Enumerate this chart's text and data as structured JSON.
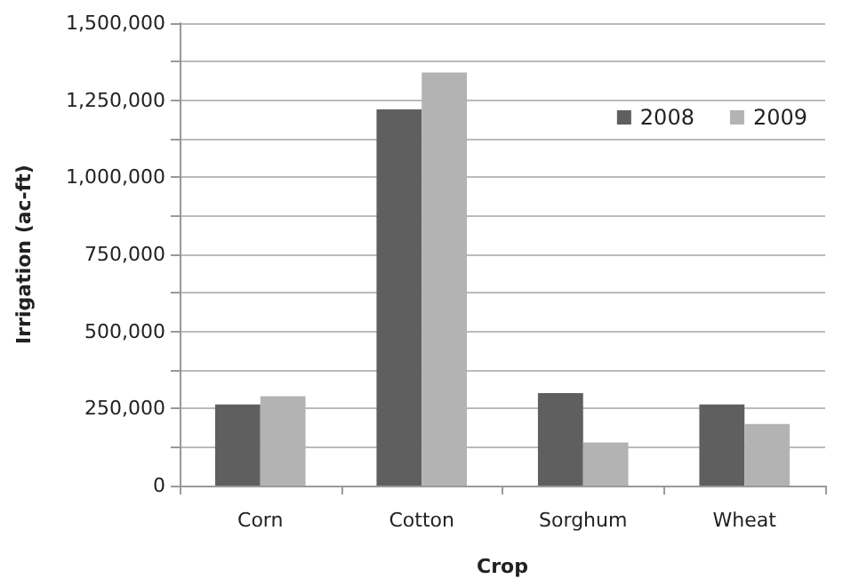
{
  "chart_data": {
    "type": "bar",
    "xlabel": "Crop",
    "ylabel": "Irrigation (ac-ft)",
    "categories": [
      "Corn",
      "Cotton",
      "Sorghum",
      "Wheat"
    ],
    "series": [
      {
        "name": "2008",
        "color": "#5f5f5f",
        "values": [
          263000,
          1220000,
          300000,
          263000
        ]
      },
      {
        "name": "2009",
        "color": "#b3b3b3",
        "values": [
          290000,
          1340000,
          140000,
          200000
        ]
      }
    ],
    "ylim": [
      0,
      1500000
    ],
    "yticks": [
      0,
      {
        "value": 125000,
        "label": null
      },
      {
        "value": 250000,
        "label": "250,000"
      },
      {
        "value": 375000,
        "label": null
      },
      {
        "value": 500000,
        "label": "500,000"
      },
      {
        "value": 625000,
        "label": null
      },
      {
        "value": 750000,
        "label": "750,000"
      },
      {
        "value": 875000,
        "label": null
      },
      {
        "value": 1000000,
        "label": "1,000,000"
      },
      {
        "value": 1125000,
        "label": null
      },
      {
        "value": 1250000,
        "label": "1,250,000"
      },
      {
        "value": 1375000,
        "label": null
      },
      {
        "value": 1500000,
        "label": "1,500,000"
      }
    ],
    "grid": true,
    "legend": "top right"
  }
}
